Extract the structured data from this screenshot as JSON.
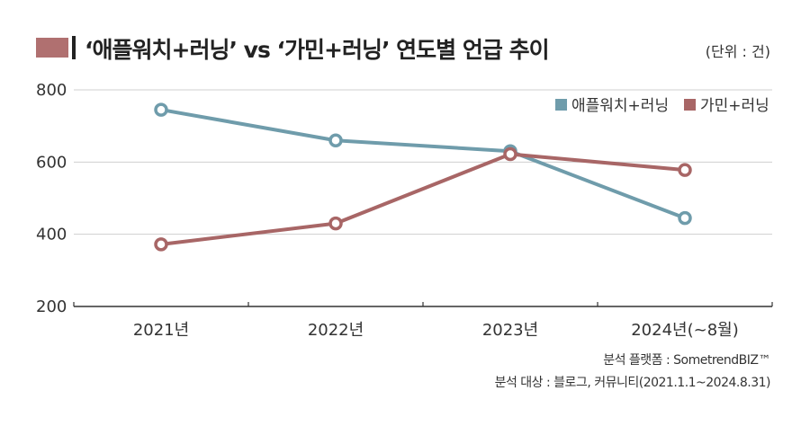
{
  "header": {
    "title": "‘애플워치+러닝’ vs ‘가민+러닝’ 연도별 언급 추이",
    "unit": "(단위 : 건)"
  },
  "footer": {
    "source_platform": "분석 플랫폼 : SometrendBIZ™",
    "source_target": "분석 대상 : 블로그, 커뮤니티(2021.1.1~2024.8.31)"
  },
  "colors": {
    "apple": "#6f9cab",
    "garmin": "#a86666",
    "title_bar": "#b07070"
  },
  "chart_data": {
    "type": "line",
    "title": "‘애플워치+러닝’ vs ‘가민+러닝’ 연도별 언급 추이",
    "categories": [
      "2021년",
      "2022년",
      "2023년",
      "2024년(~8월)"
    ],
    "series": [
      {
        "name": "애플워치+러닝",
        "values": [
          745,
          660,
          630,
          445
        ]
      },
      {
        "name": "가민+러닝",
        "values": [
          372,
          430,
          622,
          578
        ]
      }
    ],
    "ylim": [
      200,
      800
    ],
    "yticks": [
      200,
      400,
      600,
      800
    ],
    "grid": true,
    "legend": "top-right",
    "xlabel": "",
    "ylabel": ""
  }
}
